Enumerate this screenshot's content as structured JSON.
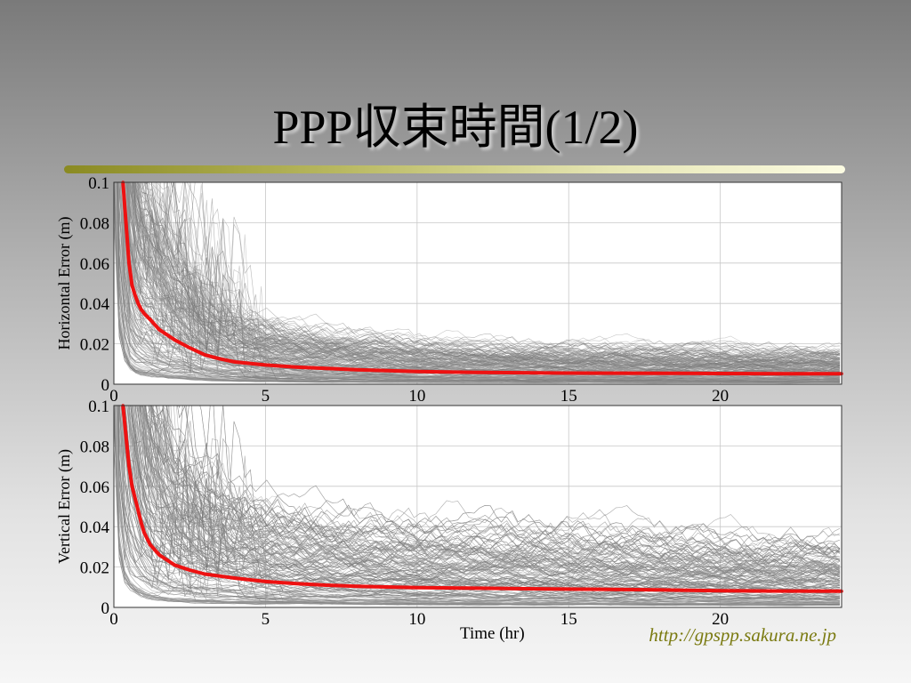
{
  "slide": {
    "title": "PPP収束時間(1/2)",
    "url": "http://gpspp.sakura.ne.jp",
    "colors": {
      "mean_line": "#ee1111",
      "traces": "#8c8c8c",
      "divider": "#a8a850"
    }
  },
  "chart_data": [
    {
      "type": "line",
      "ylabel": "Horizontal Error (m)",
      "xlabel": "",
      "xlim": [
        0,
        24
      ],
      "ylim": [
        0,
        0.1
      ],
      "xticks": [
        0,
        5,
        10,
        15,
        20
      ],
      "yticks": [
        0,
        0.02,
        0.04,
        0.06,
        0.08,
        0.1
      ],
      "grid": true,
      "series": [
        {
          "role": "mean",
          "x": [
            0.3,
            0.4,
            0.5,
            0.6,
            0.7,
            0.8,
            0.9,
            1.0,
            1.2,
            1.5,
            2.0,
            2.5,
            3.0,
            3.5,
            4.0,
            5.0,
            6.0,
            7.0,
            8.0,
            10.0,
            12.0,
            15.0,
            18.0,
            20.0,
            22.0,
            24.0
          ],
          "y": [
            0.1,
            0.08,
            0.06,
            0.049,
            0.044,
            0.04,
            0.037,
            0.035,
            0.032,
            0.027,
            0.022,
            0.018,
            0.0145,
            0.0125,
            0.011,
            0.0095,
            0.0085,
            0.0078,
            0.0072,
            0.0063,
            0.0058,
            0.0055,
            0.0054,
            0.0053,
            0.0052,
            0.0052
          ]
        }
      ]
    },
    {
      "type": "line",
      "ylabel": "Vertical Error (m)",
      "xlabel": "Time (hr)",
      "xlim": [
        0,
        24
      ],
      "ylim": [
        0,
        0.1
      ],
      "xticks": [
        0,
        5,
        10,
        15,
        20
      ],
      "yticks": [
        0,
        0.02,
        0.04,
        0.06,
        0.08,
        0.1
      ],
      "grid": true,
      "series": [
        {
          "role": "mean",
          "x": [
            0.3,
            0.4,
            0.5,
            0.6,
            0.7,
            0.8,
            0.9,
            1.0,
            1.2,
            1.5,
            2.0,
            2.5,
            3.0,
            3.5,
            4.0,
            5.0,
            6.0,
            7.0,
            8.0,
            10.0,
            12.0,
            14.0,
            16.0,
            18.0,
            20.0,
            22.0,
            24.0
          ],
          "y": [
            0.1,
            0.085,
            0.07,
            0.06,
            0.054,
            0.048,
            0.042,
            0.037,
            0.031,
            0.026,
            0.021,
            0.0185,
            0.0165,
            0.0155,
            0.0145,
            0.0128,
            0.0118,
            0.011,
            0.0105,
            0.0098,
            0.0095,
            0.0092,
            0.009,
            0.0087,
            0.0083,
            0.0081,
            0.008
          ]
        }
      ]
    }
  ]
}
